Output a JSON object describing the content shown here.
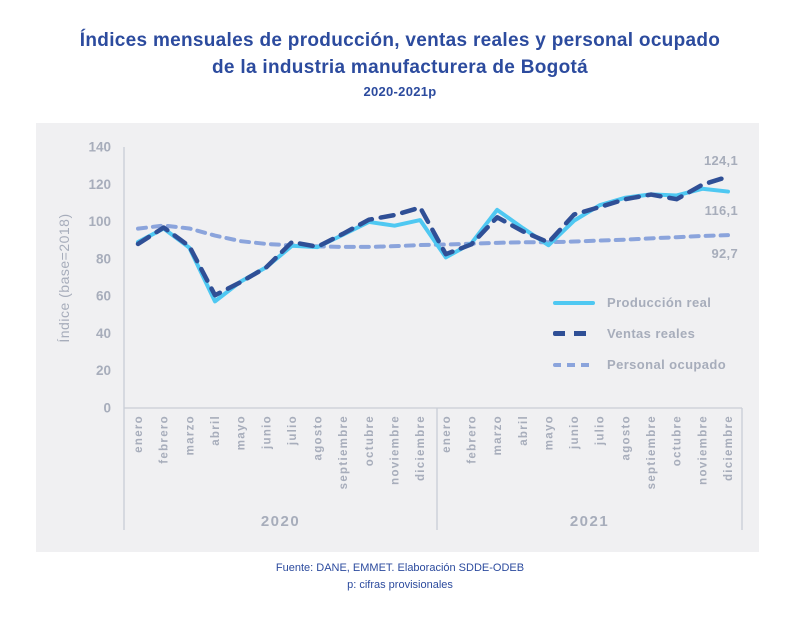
{
  "title": {
    "line1": "Índices mensuales de producción, ventas reales y personal ocupado",
    "line2": "de la industria manufacturera de Bogotá",
    "subtitle": "2020-2021p"
  },
  "footer": {
    "line1": "Fuente: DANE, EMMET. Elaboración SDDE-ODEB",
    "line2": "p: cifras provisionales"
  },
  "colors": {
    "title_blue": "#2c4b9e",
    "muted_gray": "#a7adbb",
    "panel_bg": "#f0f0f2",
    "axis_line": "#c9cdd6",
    "produccion": "#4fc8f2",
    "ventas": "#2f4f96",
    "personal": "#8ba4dc"
  },
  "chart_data": {
    "type": "line",
    "title": "Índices mensuales de producción, ventas reales y personal ocupado de la industria manufacturera de Bogotá 2020-2021p",
    "xlabel": "",
    "ylabel": "Índice (base=2018)",
    "ylim": [
      0,
      140
    ],
    "y_ticks": [
      140,
      120,
      100,
      80,
      60,
      40,
      20,
      0
    ],
    "grid": false,
    "legend_position": "inside-right",
    "months": [
      "enero",
      "febrero",
      "marzo",
      "abril",
      "mayo",
      "junio",
      "julio",
      "agosto",
      "septiembre",
      "octubre",
      "noviembre",
      "diciembre"
    ],
    "year_groups": [
      {
        "label": "2020"
      },
      {
        "label": "2021"
      }
    ],
    "series": [
      {
        "name": "Producción real",
        "color": "#4fc8f2",
        "style": "solid",
        "values": [
          89.0,
          96.3,
          86.0,
          57.2,
          67.8,
          75.5,
          87.0,
          86.3,
          93.0,
          99.8,
          97.8,
          100.8,
          80.8,
          88.4,
          106.3,
          96.5,
          87.3,
          100.5,
          108.8,
          112.8,
          114.6,
          114.0,
          117.6,
          116.1
        ]
      },
      {
        "name": "Ventas reales",
        "color": "#2f4f96",
        "style": "dashed-long",
        "values": [
          88.0,
          96.8,
          86.8,
          60.5,
          67.5,
          75.5,
          89.0,
          86.5,
          93.5,
          101.0,
          103.5,
          107.5,
          82.5,
          87.8,
          102.3,
          94.8,
          88.8,
          103.8,
          107.8,
          112.0,
          114.5,
          112.0,
          119.8,
          124.1
        ]
      },
      {
        "name": "Personal ocupado",
        "color": "#8ba4dc",
        "style": "dashed-short",
        "values": [
          96.2,
          97.9,
          96.3,
          92.5,
          89.5,
          88.0,
          87.2,
          86.7,
          86.4,
          86.4,
          86.8,
          87.4,
          87.7,
          88.1,
          88.6,
          88.9,
          88.9,
          89.3,
          89.8,
          90.3,
          91.0,
          91.6,
          92.3,
          92.7
        ]
      }
    ],
    "end_labels": [
      {
        "text": "124,1",
        "series": "Ventas reales",
        "value": 124.1
      },
      {
        "text": "116,1",
        "series": "Producción real",
        "value": 116.1
      },
      {
        "text": "92,7",
        "series": "Personal ocupado",
        "value": 92.7
      }
    ]
  }
}
